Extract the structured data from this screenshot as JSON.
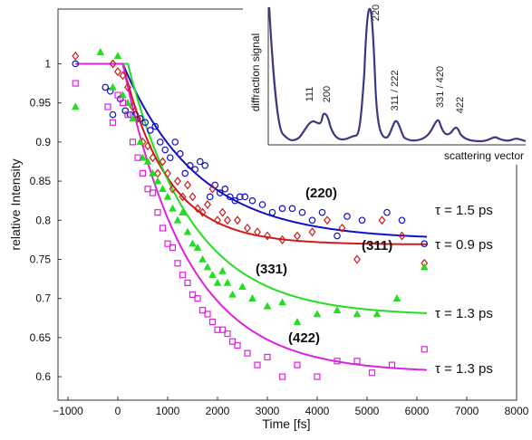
{
  "chart_data": {
    "type": "scatter",
    "xlabel": "Time [fs]",
    "ylabel": "relative Intensity",
    "xlim": [
      -1200,
      8000
    ],
    "ylim": [
      0.57,
      1.07
    ],
    "x_ticks": [
      -1000,
      0,
      1000,
      2000,
      3000,
      4000,
      5000,
      6000,
      7000,
      8000
    ],
    "x_tick_labels": [
      "−1000",
      "0",
      "1000",
      "2000",
      "3000",
      "4000",
      "5000",
      "6000",
      "7000",
      "8000"
    ],
    "y_ticks": [
      0.6,
      0.65,
      0.7,
      0.75,
      0.8,
      0.85,
      0.9,
      0.95,
      1.0
    ],
    "y_tick_labels": [
      "0.6",
      "0.65",
      "0.7",
      "0.75",
      "0.8",
      "0.85",
      "0.9",
      "0.95",
      "1"
    ],
    "grid": false,
    "fit_end": 6200,
    "series": [
      {
        "name": "(220)",
        "tau_label": "τ = 1.5 ps",
        "color": "#1010c8",
        "marker": "circle",
        "onset": 100,
        "tau": 1500,
        "asymptote": 0.775,
        "points": [
          [
            -850,
            1.0
          ],
          [
            -250,
            0.97
          ],
          [
            -150,
            0.965
          ],
          [
            -100,
            0.935
          ],
          [
            50,
            0.955
          ],
          [
            150,
            0.94
          ],
          [
            250,
            0.935
          ],
          [
            350,
            0.935
          ],
          [
            450,
            0.93
          ],
          [
            550,
            0.925
          ],
          [
            650,
            0.915
          ],
          [
            750,
            0.92
          ],
          [
            850,
            0.9
          ],
          [
            950,
            0.89
          ],
          [
            1050,
            0.88
          ],
          [
            1150,
            0.9
          ],
          [
            1250,
            0.885
          ],
          [
            1350,
            0.86
          ],
          [
            1450,
            0.87
          ],
          [
            1550,
            0.865
          ],
          [
            1650,
            0.875
          ],
          [
            1750,
            0.87
          ],
          [
            1850,
            0.83
          ],
          [
            1950,
            0.845
          ],
          [
            2050,
            0.835
          ],
          [
            2150,
            0.84
          ],
          [
            2250,
            0.83
          ],
          [
            2350,
            0.825
          ],
          [
            2450,
            0.83
          ],
          [
            2550,
            0.83
          ],
          [
            2700,
            0.825
          ],
          [
            2900,
            0.82
          ],
          [
            3100,
            0.81
          ],
          [
            3300,
            0.815
          ],
          [
            3500,
            0.815
          ],
          [
            3700,
            0.81
          ],
          [
            3900,
            0.8
          ],
          [
            4100,
            0.81
          ],
          [
            4400,
            0.78
          ],
          [
            4600,
            0.805
          ],
          [
            4900,
            0.8
          ],
          [
            5400,
            0.81
          ],
          [
            5700,
            0.8
          ],
          [
            6150,
            0.77
          ]
        ]
      },
      {
        "name": "(311)",
        "tau_label": "τ = 0.9 ps",
        "color": "#d01a1a",
        "marker": "diamond",
        "onset": 100,
        "tau": 900,
        "asymptote": 0.769,
        "points": [
          [
            -850,
            1.01
          ],
          [
            -100,
            1.0
          ],
          [
            0,
            0.99
          ],
          [
            100,
            0.985
          ],
          [
            200,
            0.97
          ],
          [
            300,
            0.945
          ],
          [
            400,
            0.93
          ],
          [
            500,
            0.9
          ],
          [
            600,
            0.895
          ],
          [
            700,
            0.88
          ],
          [
            800,
            0.86
          ],
          [
            900,
            0.875
          ],
          [
            1000,
            0.86
          ],
          [
            1100,
            0.84
          ],
          [
            1200,
            0.85
          ],
          [
            1300,
            0.83
          ],
          [
            1400,
            0.845
          ],
          [
            1500,
            0.83
          ],
          [
            1600,
            0.815
          ],
          [
            1700,
            0.81
          ],
          [
            1800,
            0.82
          ],
          [
            1900,
            0.84
          ],
          [
            2000,
            0.8
          ],
          [
            2100,
            0.81
          ],
          [
            2200,
            0.8
          ],
          [
            2400,
            0.8
          ],
          [
            2600,
            0.79
          ],
          [
            2800,
            0.785
          ],
          [
            3000,
            0.78
          ],
          [
            3300,
            0.775
          ],
          [
            3600,
            0.78
          ],
          [
            3900,
            0.785
          ],
          [
            4200,
            0.8
          ],
          [
            4500,
            0.79
          ],
          [
            4800,
            0.75
          ],
          [
            5300,
            0.8
          ],
          [
            5700,
            0.78
          ],
          [
            6150,
            0.745
          ]
        ]
      },
      {
        "name": "(331)",
        "tau_label": "τ = 1.3 ps",
        "color": "#22dd22",
        "marker": "triangle",
        "onset": 200,
        "tau": 1300,
        "asymptote": 0.678,
        "points": [
          [
            -850,
            0.945
          ],
          [
            -350,
            1.015
          ],
          [
            -100,
            0.97
          ],
          [
            0,
            1.01
          ],
          [
            100,
            0.96
          ],
          [
            200,
            0.95
          ],
          [
            300,
            0.93
          ],
          [
            450,
            0.9
          ],
          [
            500,
            0.88
          ],
          [
            600,
            0.875
          ],
          [
            700,
            0.86
          ],
          [
            800,
            0.85
          ],
          [
            900,
            0.84
          ],
          [
            1000,
            0.83
          ],
          [
            1100,
            0.815
          ],
          [
            1200,
            0.8
          ],
          [
            1300,
            0.81
          ],
          [
            1400,
            0.785
          ],
          [
            1500,
            0.77
          ],
          [
            1600,
            0.765
          ],
          [
            1700,
            0.75
          ],
          [
            1800,
            0.74
          ],
          [
            1900,
            0.73
          ],
          [
            2000,
            0.72
          ],
          [
            2100,
            0.735
          ],
          [
            2200,
            0.72
          ],
          [
            2300,
            0.705
          ],
          [
            2500,
            0.715
          ],
          [
            2700,
            0.7
          ],
          [
            3000,
            0.69
          ],
          [
            3300,
            0.695
          ],
          [
            3600,
            0.67
          ],
          [
            4000,
            0.68
          ],
          [
            4400,
            0.685
          ],
          [
            4800,
            0.68
          ],
          [
            5200,
            0.68
          ],
          [
            5600,
            0.7
          ],
          [
            6150,
            0.74
          ]
        ]
      },
      {
        "name": "(422)",
        "tau_label": "τ = 1.3 ps",
        "color": "#dd22dd",
        "marker": "square",
        "onset": 100,
        "tau": 1300,
        "asymptote": 0.605,
        "points": [
          [
            -850,
            0.975
          ],
          [
            -200,
            0.945
          ],
          [
            -100,
            0.925
          ],
          [
            0,
            0.96
          ],
          [
            100,
            0.95
          ],
          [
            200,
            0.935
          ],
          [
            300,
            0.9
          ],
          [
            400,
            0.88
          ],
          [
            500,
            0.86
          ],
          [
            600,
            0.84
          ],
          [
            700,
            0.835
          ],
          [
            800,
            0.81
          ],
          [
            900,
            0.79
          ],
          [
            1000,
            0.77
          ],
          [
            1100,
            0.765
          ],
          [
            1200,
            0.745
          ],
          [
            1300,
            0.73
          ],
          [
            1400,
            0.72
          ],
          [
            1500,
            0.705
          ],
          [
            1600,
            0.7
          ],
          [
            1700,
            0.685
          ],
          [
            1800,
            0.68
          ],
          [
            1900,
            0.67
          ],
          [
            2000,
            0.66
          ],
          [
            2100,
            0.66
          ],
          [
            2200,
            0.655
          ],
          [
            2300,
            0.645
          ],
          [
            2400,
            0.64
          ],
          [
            2600,
            0.63
          ],
          [
            2800,
            0.615
          ],
          [
            3000,
            0.625
          ],
          [
            3300,
            0.6
          ],
          [
            3600,
            0.615
          ],
          [
            4000,
            0.6
          ],
          [
            4400,
            0.62
          ],
          [
            4800,
            0.62
          ],
          [
            5100,
            0.605
          ],
          [
            5500,
            0.615
          ],
          [
            6150,
            0.635
          ]
        ]
      }
    ],
    "inset": {
      "xlabel": "scattering vector",
      "ylabel": "diffraction signal",
      "line_color": "#3a3a80",
      "peaks": [
        "111",
        "200",
        "220",
        "311 / 222",
        "331 / 420",
        "422"
      ]
    }
  }
}
